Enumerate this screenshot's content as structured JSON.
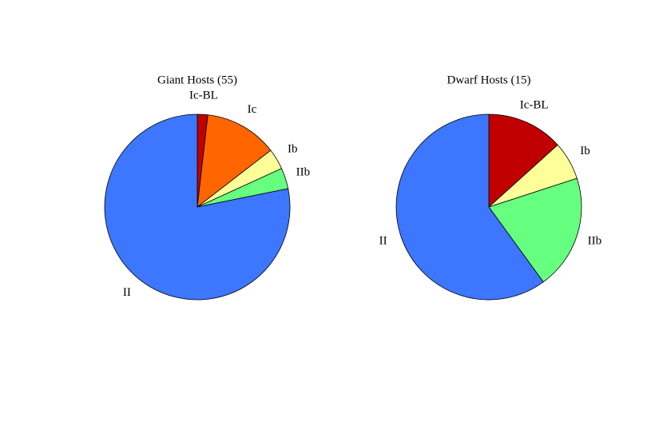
{
  "chart_data": [
    {
      "type": "pie",
      "title": "Giant Hosts (55)",
      "categories": [
        "Ic-BL",
        "Ic",
        "Ib",
        "IIb",
        "II"
      ],
      "values": [
        1,
        7,
        2,
        2,
        43
      ],
      "colors": [
        "#c00000",
        "#ff6600",
        "#ffff99",
        "#66ff80",
        "#3d76ff"
      ]
    },
    {
      "type": "pie",
      "title": "Dwarf Hosts (15)",
      "categories": [
        "Ic-BL",
        "Ib",
        "IIb",
        "II"
      ],
      "values": [
        2,
        1,
        3,
        9
      ],
      "colors": [
        "#c00000",
        "#ffff99",
        "#66ff80",
        "#3d76ff"
      ]
    }
  ]
}
